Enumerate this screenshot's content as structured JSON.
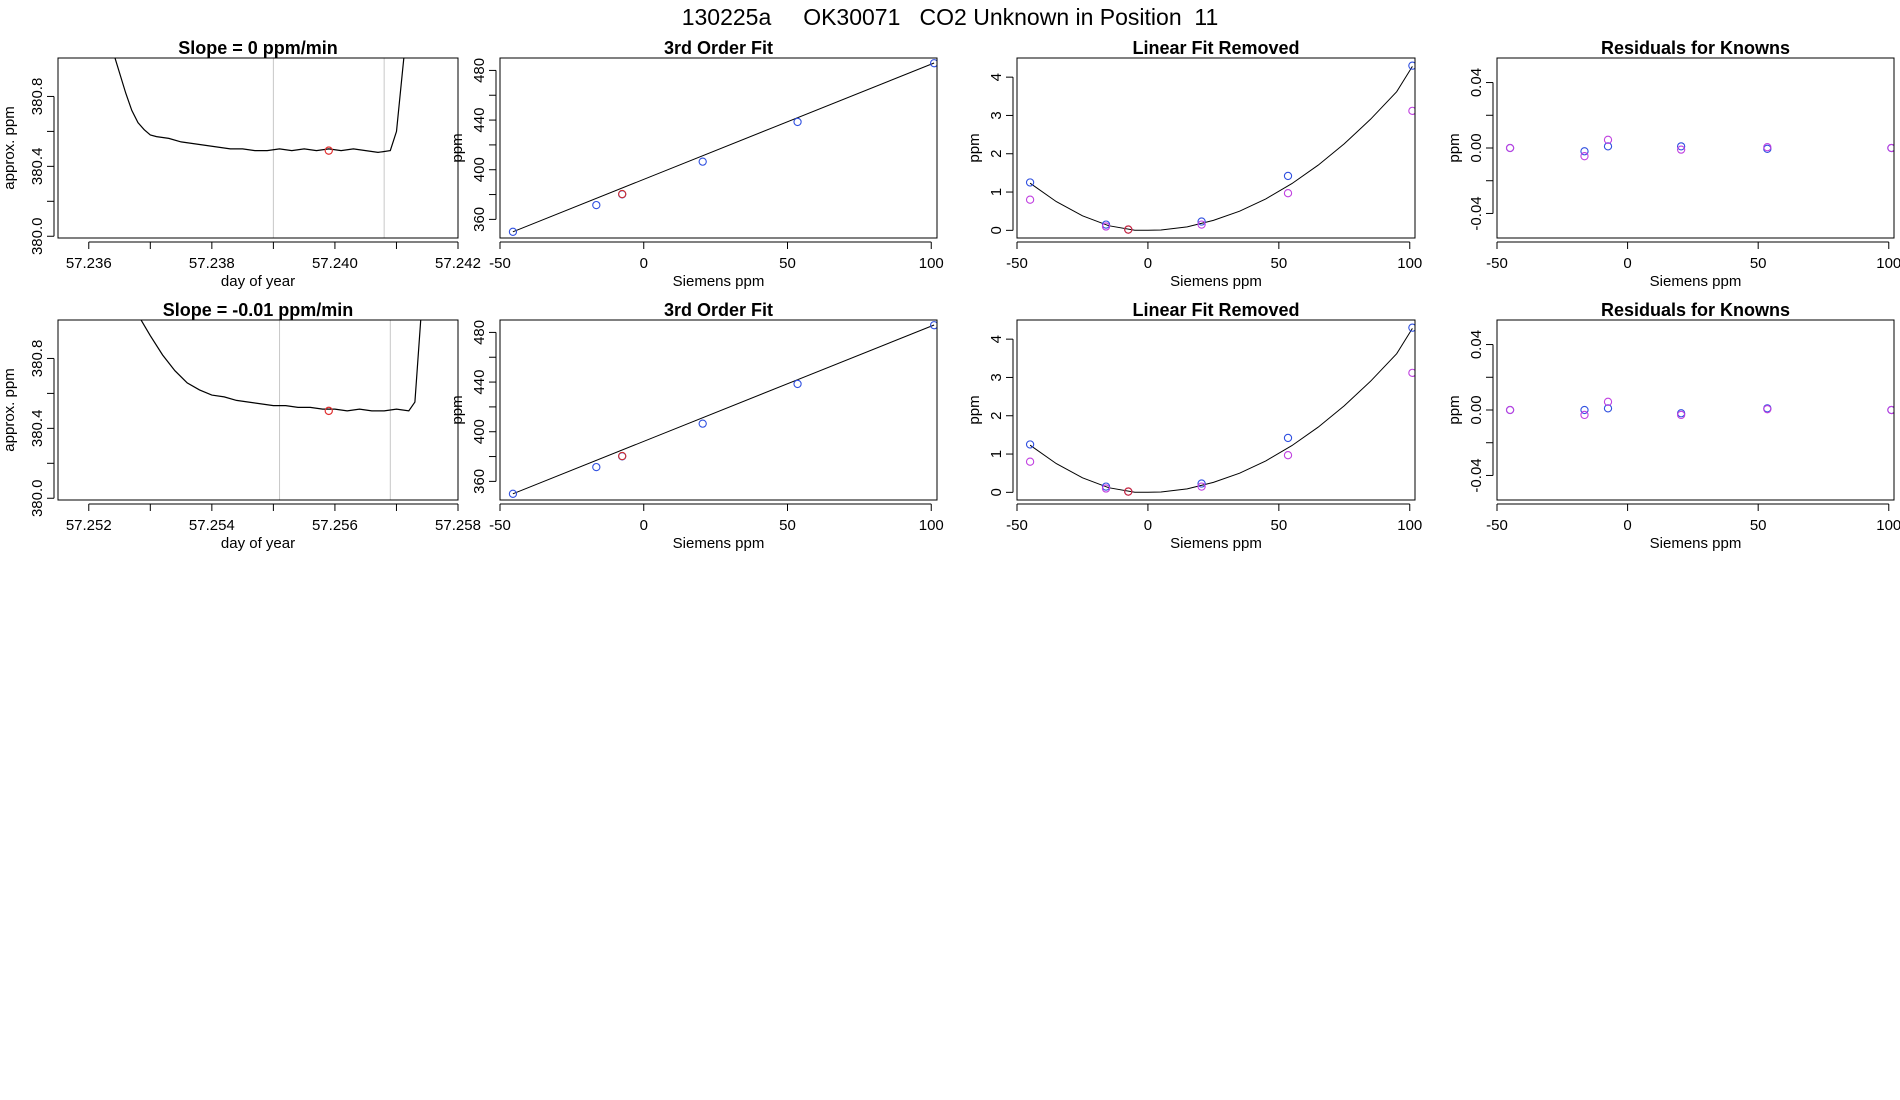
{
  "figure": {
    "title": "130225a     OK30071   CO2 Unknown in Position  11"
  },
  "chart_data": [
    {
      "type": "line",
      "title": "Slope =  0  ppm/min",
      "xlabel": "day of year",
      "ylabel": "approx. ppm",
      "xlim": [
        57.2355,
        57.242
      ],
      "ylim": [
        379.99,
        381.02
      ],
      "xticks": [
        57.236,
        57.237,
        57.238,
        57.239,
        57.24,
        57.241,
        57.242
      ],
      "xtick_labels": [
        "57.236",
        "",
        "57.238",
        "",
        "57.240",
        "",
        "57.242"
      ],
      "yticks": [
        380.0,
        380.2,
        380.4,
        380.6,
        380.8
      ],
      "ytick_labels": [
        "380.0",
        "",
        "380.4",
        "",
        "380.8"
      ],
      "vlines": [
        57.239,
        57.2408
      ],
      "series": [
        {
          "name": "trace",
          "color": "#000000",
          "x": [
            57.2362,
            57.2364,
            57.2366,
            57.2367,
            57.2368,
            57.2369,
            57.237,
            57.2371,
            57.2373,
            57.2375,
            57.2377,
            57.2379,
            57.2381,
            57.2383,
            57.2385,
            57.2387,
            57.2389,
            57.2391,
            57.2393,
            57.2395,
            57.2397,
            57.2399,
            57.2401,
            57.2403,
            57.2405,
            57.2407,
            57.2409,
            57.241,
            57.2411,
            57.2412
          ],
          "y": [
            381.3,
            381.05,
            380.82,
            380.72,
            380.65,
            380.61,
            380.58,
            380.57,
            380.56,
            380.54,
            380.53,
            380.52,
            380.51,
            380.5,
            380.5,
            380.49,
            380.49,
            380.5,
            380.49,
            380.5,
            380.49,
            380.5,
            380.49,
            380.5,
            380.49,
            380.48,
            380.49,
            380.6,
            380.95,
            381.3
          ]
        }
      ],
      "highlight_points": [
        {
          "x": 57.2399,
          "y": 380.49,
          "color": "#e03030"
        }
      ]
    },
    {
      "type": "scatter",
      "title": "3rd Order Fit",
      "xlabel": "Siemens ppm",
      "ylabel": "ppm",
      "xlim": [
        -50,
        102
      ],
      "ylim": [
        345,
        490
      ],
      "xticks": [
        -50,
        0,
        50,
        100
      ],
      "xtick_labels": [
        "-50",
        "0",
        "50",
        "100"
      ],
      "yticks": [
        360,
        380,
        400,
        420,
        440,
        460,
        480
      ],
      "ytick_labels": [
        "360",
        "",
        "400",
        "",
        "440",
        "",
        "480"
      ],
      "fit_line": {
        "x": [
          -45.5,
          101
        ],
        "y": [
          350,
          486
        ],
        "color": "#000000"
      },
      "series": [
        {
          "name": "knowns",
          "color": "#3050e0",
          "x": [
            -45.5,
            -16.5,
            -7.5,
            20.5,
            53.5,
            101
          ],
          "y": [
            350,
            371.5,
            380.2,
            406.5,
            438.5,
            485.8
          ]
        },
        {
          "name": "unknown",
          "color": "#d03030",
          "x": [
            -7.5
          ],
          "y": [
            380.4
          ]
        }
      ]
    },
    {
      "type": "scatter",
      "title": "Linear Fit Removed",
      "xlabel": "Siemens ppm",
      "ylabel": "ppm",
      "xlim": [
        -50,
        102
      ],
      "ylim": [
        -0.2,
        4.5
      ],
      "xticks": [
        -50,
        0,
        50,
        100
      ],
      "xtick_labels": [
        "-50",
        "0",
        "50",
        "100"
      ],
      "yticks": [
        0,
        1,
        2,
        3,
        4
      ],
      "ytick_labels": [
        "0",
        "1",
        "2",
        "3",
        "4"
      ],
      "curve": {
        "x": [
          -45,
          -35,
          -25,
          -15,
          -5,
          0,
          5,
          15,
          25,
          35,
          45,
          55,
          65,
          75,
          85,
          95,
          101
        ],
        "y": [
          1.23,
          0.75,
          0.38,
          0.12,
          0.0,
          0.0,
          0.01,
          0.09,
          0.26,
          0.5,
          0.82,
          1.22,
          1.7,
          2.26,
          2.9,
          3.62,
          4.28
        ],
        "color": "#000000"
      },
      "series": [
        {
          "name": "fit",
          "color": "#3050e0",
          "x": [
            -45,
            -16,
            -7.5,
            20.5,
            53.5,
            101
          ],
          "y": [
            1.25,
            0.15,
            0.02,
            0.23,
            1.42,
            4.3
          ]
        },
        {
          "name": "measured",
          "color": "#c040e0",
          "x": [
            -45,
            -16,
            -7.5,
            20.5,
            53.5,
            101
          ],
          "y": [
            0.8,
            0.1,
            0.02,
            0.15,
            0.97,
            3.12
          ]
        },
        {
          "name": "unknown",
          "color": "#d03030",
          "x": [
            -7.5
          ],
          "y": [
            0.02
          ]
        }
      ]
    },
    {
      "type": "scatter",
      "title": "Residuals for Knowns",
      "xlabel": "Siemens ppm",
      "ylabel": "ppm",
      "xlim": [
        -50,
        102
      ],
      "ylim": [
        -0.055,
        0.055
      ],
      "xticks": [
        -50,
        0,
        50,
        100
      ],
      "xtick_labels": [
        "-50",
        "0",
        "50",
        "100"
      ],
      "yticks": [
        -0.04,
        -0.02,
        0.0,
        0.02,
        0.04
      ],
      "ytick_labels": [
        "-0.04",
        "",
        "0.00",
        "",
        "0.04"
      ],
      "series": [
        {
          "name": "blue",
          "color": "#3050e0",
          "x": [
            -45,
            -16.5,
            -7.5,
            20.5,
            53.5,
            101
          ],
          "y": [
            0.0,
            -0.002,
            0.001,
            0.001,
            -0.0005,
            0.0
          ]
        },
        {
          "name": "purple",
          "color": "#c040e0",
          "x": [
            -45,
            -16.5,
            -7.5,
            20.5,
            53.5,
            101
          ],
          "y": [
            0.0,
            -0.005,
            0.005,
            -0.001,
            0.0005,
            0.0
          ]
        }
      ]
    },
    {
      "type": "line",
      "title": "Slope =  -0.01  ppm/min",
      "xlabel": "day of year",
      "ylabel": "approx. ppm",
      "xlim": [
        57.2515,
        57.258
      ],
      "ylim": [
        379.99,
        381.02
      ],
      "xticks": [
        57.252,
        57.253,
        57.254,
        57.255,
        57.256,
        57.257,
        57.258
      ],
      "xtick_labels": [
        "57.252",
        "",
        "57.254",
        "",
        "57.256",
        "",
        "57.258"
      ],
      "yticks": [
        380.0,
        380.2,
        380.4,
        380.6,
        380.8
      ],
      "ytick_labels": [
        "380.0",
        "",
        "380.4",
        "",
        "380.8"
      ],
      "vlines": [
        57.2551,
        57.2569
      ],
      "series": [
        {
          "name": "trace",
          "color": "#000000",
          "x": [
            57.2528,
            57.253,
            57.2532,
            57.2534,
            57.2536,
            57.2538,
            57.254,
            57.2542,
            57.2544,
            57.2546,
            57.2548,
            57.255,
            57.2552,
            57.2554,
            57.2556,
            57.2558,
            57.256,
            57.2562,
            57.2564,
            57.2566,
            57.2568,
            57.257,
            57.2572,
            57.2573,
            57.2574
          ],
          "y": [
            381.05,
            380.93,
            380.82,
            380.73,
            380.66,
            380.62,
            380.59,
            380.58,
            380.56,
            380.55,
            380.54,
            380.53,
            380.53,
            380.52,
            380.52,
            380.51,
            380.51,
            380.5,
            380.51,
            380.5,
            380.5,
            380.51,
            380.5,
            380.55,
            381.05
          ]
        }
      ],
      "highlight_points": [
        {
          "x": 57.2559,
          "y": 380.5,
          "color": "#e03030"
        }
      ]
    },
    {
      "type": "scatter",
      "title": "3rd Order Fit",
      "xlabel": "Siemens ppm",
      "ylabel": "ppm",
      "xlim": [
        -50,
        102
      ],
      "ylim": [
        345,
        490
      ],
      "xticks": [
        -50,
        0,
        50,
        100
      ],
      "xtick_labels": [
        "-50",
        "0",
        "50",
        "100"
      ],
      "yticks": [
        360,
        380,
        400,
        420,
        440,
        460,
        480
      ],
      "ytick_labels": [
        "360",
        "",
        "400",
        "",
        "440",
        "",
        "480"
      ],
      "fit_line": {
        "x": [
          -45.5,
          101
        ],
        "y": [
          350,
          486
        ],
        "color": "#000000"
      },
      "series": [
        {
          "name": "knowns",
          "color": "#3050e0",
          "x": [
            -45.5,
            -16.5,
            -7.5,
            20.5,
            53.5,
            101
          ],
          "y": [
            350,
            371.5,
            380.2,
            406.5,
            438.5,
            485.8
          ]
        },
        {
          "name": "unknown",
          "color": "#d03030",
          "x": [
            -7.5
          ],
          "y": [
            380.4
          ]
        }
      ]
    },
    {
      "type": "scatter",
      "title": "Linear Fit Removed",
      "xlabel": "Siemens ppm",
      "ylabel": "ppm",
      "xlim": [
        -50,
        102
      ],
      "ylim": [
        -0.2,
        4.5
      ],
      "xticks": [
        -50,
        0,
        50,
        100
      ],
      "xtick_labels": [
        "-50",
        "0",
        "50",
        "100"
      ],
      "yticks": [
        0,
        1,
        2,
        3,
        4
      ],
      "ytick_labels": [
        "0",
        "1",
        "2",
        "3",
        "4"
      ],
      "curve": {
        "x": [
          -45,
          -35,
          -25,
          -15,
          -5,
          0,
          5,
          15,
          25,
          35,
          45,
          55,
          65,
          75,
          85,
          95,
          101
        ],
        "y": [
          1.23,
          0.75,
          0.38,
          0.12,
          0.0,
          0.0,
          0.01,
          0.09,
          0.26,
          0.5,
          0.82,
          1.22,
          1.7,
          2.26,
          2.9,
          3.62,
          4.28
        ],
        "color": "#000000"
      },
      "series": [
        {
          "name": "fit",
          "color": "#3050e0",
          "x": [
            -45,
            -16,
            -7.5,
            20.5,
            53.5,
            101
          ],
          "y": [
            1.25,
            0.15,
            0.02,
            0.23,
            1.42,
            4.3
          ]
        },
        {
          "name": "measured",
          "color": "#c040e0",
          "x": [
            -45,
            -16,
            -7.5,
            20.5,
            53.5,
            101
          ],
          "y": [
            0.8,
            0.1,
            0.02,
            0.15,
            0.97,
            3.12
          ]
        },
        {
          "name": "unknown",
          "color": "#d03030",
          "x": [
            -7.5
          ],
          "y": [
            0.02
          ]
        }
      ]
    },
    {
      "type": "scatter",
      "title": "Residuals for Knowns",
      "xlabel": "Siemens ppm",
      "ylabel": "ppm",
      "xlim": [
        -50,
        102
      ],
      "ylim": [
        -0.055,
        0.055
      ],
      "xticks": [
        -50,
        0,
        50,
        100
      ],
      "xtick_labels": [
        "-50",
        "0",
        "50",
        "100"
      ],
      "yticks": [
        -0.04,
        -0.02,
        0.0,
        0.02,
        0.04
      ],
      "ytick_labels": [
        "-0.04",
        "",
        "0.00",
        "",
        "0.04"
      ],
      "series": [
        {
          "name": "blue",
          "color": "#3050e0",
          "x": [
            -45,
            -16.5,
            -7.5,
            20.5,
            53.5,
            101
          ],
          "y": [
            0.0,
            0.0,
            0.001,
            -0.002,
            0.001,
            0.0
          ]
        },
        {
          "name": "purple",
          "color": "#c040e0",
          "x": [
            -45,
            -16.5,
            -7.5,
            20.5,
            53.5,
            101
          ],
          "y": [
            0.0,
            -0.003,
            0.005,
            -0.003,
            0.0005,
            0.0
          ]
        }
      ]
    }
  ]
}
